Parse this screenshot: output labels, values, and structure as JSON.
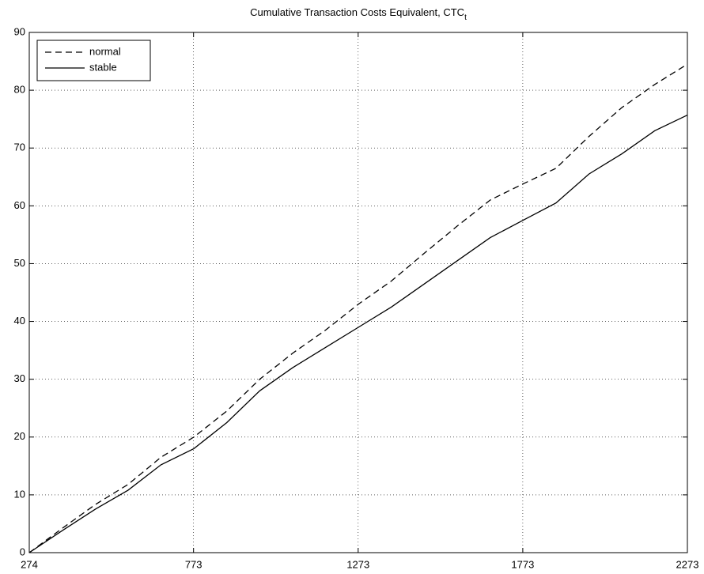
{
  "chart_data": {
    "type": "line",
    "title": "Cumulative Transaction Costs Equivalent, CTC",
    "title_subscript": "t",
    "x": [
      274,
      374,
      474,
      574,
      674,
      774,
      874,
      974,
      1074,
      1174,
      1274,
      1374,
      1474,
      1574,
      1674,
      1774,
      1874,
      1974,
      2074,
      2174,
      2273
    ],
    "series": [
      {
        "name": "normal",
        "color": "#000000",
        "linestyle": "dashed",
        "values": [
          0,
          4.2,
          8.3,
          11.8,
          16.5,
          20,
          24.5,
          30,
          34.5,
          38.5,
          43,
          47,
          51.8,
          56.5,
          61,
          63.8,
          66.5,
          72,
          77,
          81,
          84.5
        ]
      },
      {
        "name": "stable",
        "color": "#000000",
        "linestyle": "solid",
        "values": [
          0,
          3.8,
          7.5,
          10.8,
          15.2,
          18,
          22.5,
          28,
          32,
          35.5,
          39,
          42.5,
          46.5,
          50.5,
          54.5,
          57.5,
          60.5,
          65.5,
          69,
          73,
          75.7
        ]
      }
    ],
    "xlim": [
      274,
      2273
    ],
    "xticks": [
      274,
      773,
      1273,
      1773,
      2273
    ],
    "ylim": [
      0,
      90
    ],
    "yticks": [
      0,
      10,
      20,
      30,
      40,
      50,
      60,
      70,
      80,
      90
    ],
    "grid": true,
    "legend": "upper left"
  }
}
